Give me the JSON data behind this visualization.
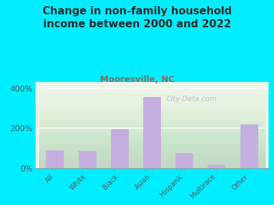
{
  "title": "Change in non-family household\nincome between 2000 and 2022",
  "subtitle": "Mooresville, NC",
  "categories": [
    "All",
    "White",
    "Black",
    "Asian",
    "Hispanic",
    "Multirace",
    "Other"
  ],
  "values": [
    90,
    85,
    195,
    355,
    75,
    18,
    220
  ],
  "bar_color": "#c5aee0",
  "background_color": "#00eeff",
  "plot_bg_gradient_top": "#e8f5e2",
  "plot_bg_gradient_bottom": "#f5faf0",
  "title_color": "#2a2a2a",
  "subtitle_color": "#8b6a5a",
  "tick_color": "#5a5a5a",
  "ytick_labels": [
    "0%",
    "200%",
    "400%"
  ],
  "ytick_values": [
    0,
    200,
    400
  ],
  "ylim": [
    0,
    430
  ],
  "watermark": "City-Data.com",
  "title_fontsize": 11,
  "subtitle_fontsize": 9
}
